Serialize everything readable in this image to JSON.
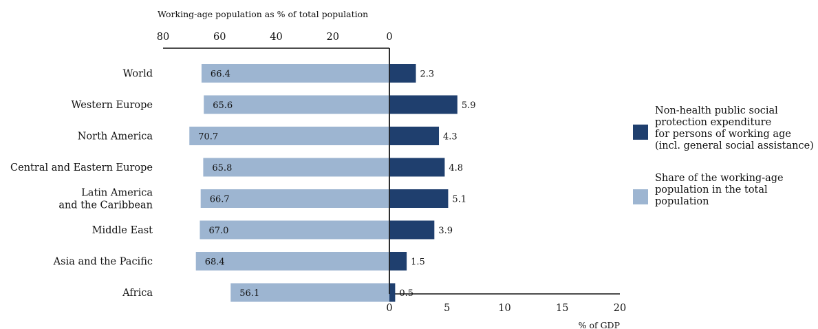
{
  "chart_data": {
    "type": "bar",
    "categories": [
      "World",
      "Western Europe",
      "North America",
      "Central and Eastern Europe",
      "Latin America\nand the Caribbean",
      "Middle East",
      "Asia and the Pacific",
      "Africa"
    ],
    "series": [
      {
        "name": "Non-health public social protection expenditure\nfor persons of working age\n(incl. general social assistance)",
        "values": [
          2.3,
          5.9,
          4.3,
          4.8,
          5.1,
          3.9,
          1.5,
          0.5
        ],
        "labels": [
          "2.3",
          "5.9",
          "4.3",
          "4.8",
          "5.1",
          "3.9",
          "1.5",
          "0.5"
        ],
        "color": "#1f3f6e"
      },
      {
        "name": "Share of the working-age\npopulation in the total\npopulation",
        "values": [
          66.4,
          65.6,
          70.7,
          65.8,
          66.7,
          67.0,
          68.4,
          56.1
        ],
        "labels": [
          "66.4",
          "65.6",
          "70.7",
          "65.8",
          "66.7",
          "67.0",
          "68.4",
          "56.1"
        ],
        "color": "#9db5d1"
      }
    ],
    "top_axis": {
      "label": "Working-age population as % of total population",
      "range": [
        80,
        0
      ],
      "ticks": [
        "80",
        "60",
        "40",
        "20",
        "0"
      ],
      "tick_values": [
        80,
        60,
        40,
        20,
        0
      ]
    },
    "bottom_axis": {
      "label": "% of GDP",
      "range": [
        0,
        20
      ],
      "ticks": [
        "0",
        "5",
        "10",
        "15",
        "20"
      ],
      "tick_values": [
        0,
        5,
        10,
        15,
        20
      ]
    },
    "legend_position": "right",
    "grid": false
  }
}
